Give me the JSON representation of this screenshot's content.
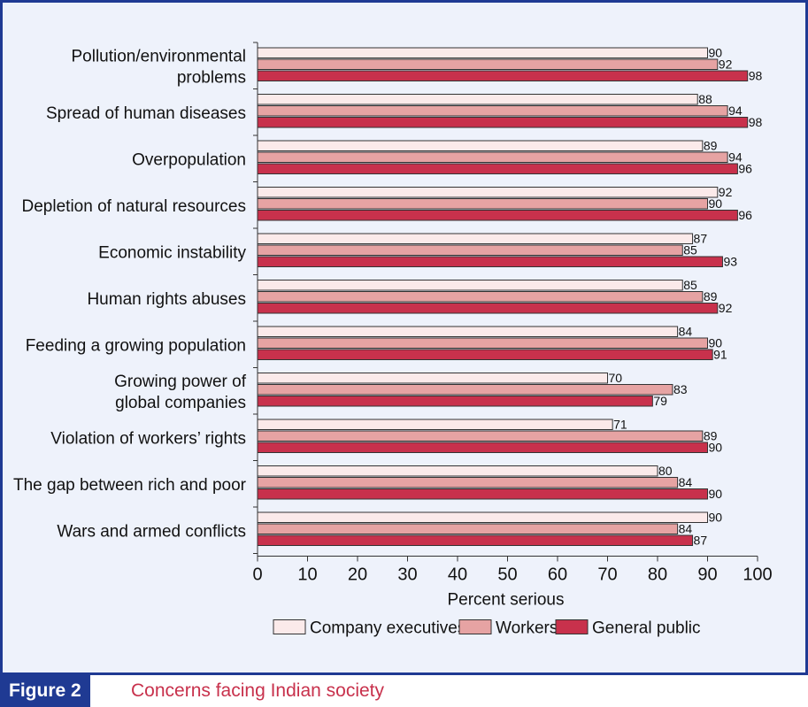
{
  "figure": {
    "tag": "Figure 2",
    "title": "Concerns facing Indian society"
  },
  "colors": {
    "executives": "#fbeaea",
    "workers": "#e6a3a3",
    "public": "#c8314c",
    "stroke": "#333333"
  },
  "chart_data": {
    "type": "bar",
    "orientation": "horizontal",
    "xlabel": "Percent serious",
    "xlim": [
      0,
      100
    ],
    "ticks": [
      0,
      10,
      20,
      30,
      40,
      50,
      60,
      70,
      80,
      90,
      100
    ],
    "categories": [
      [
        "Pollution/environmental",
        "problems"
      ],
      [
        "Spread of human diseases"
      ],
      [
        "Overpopulation"
      ],
      [
        "Depletion of natural resources"
      ],
      [
        "Economic instability"
      ],
      [
        "Human rights abuses"
      ],
      [
        "Feeding a growing population"
      ],
      [
        "Growing power of",
        "global companies"
      ],
      [
        "Violation of workers’ rights"
      ],
      [
        "The gap between rich and poor"
      ],
      [
        "Wars and armed conflicts"
      ]
    ],
    "series": [
      {
        "name": "Company executives",
        "values": [
          90,
          88,
          89,
          92,
          87,
          85,
          84,
          70,
          71,
          80,
          90
        ]
      },
      {
        "name": "Workers",
        "values": [
          92,
          94,
          94,
          90,
          85,
          89,
          90,
          83,
          89,
          84,
          84
        ]
      },
      {
        "name": "General public",
        "values": [
          98,
          98,
          96,
          96,
          93,
          92,
          91,
          79,
          90,
          90,
          87
        ]
      }
    ],
    "legend_position": "bottom"
  }
}
